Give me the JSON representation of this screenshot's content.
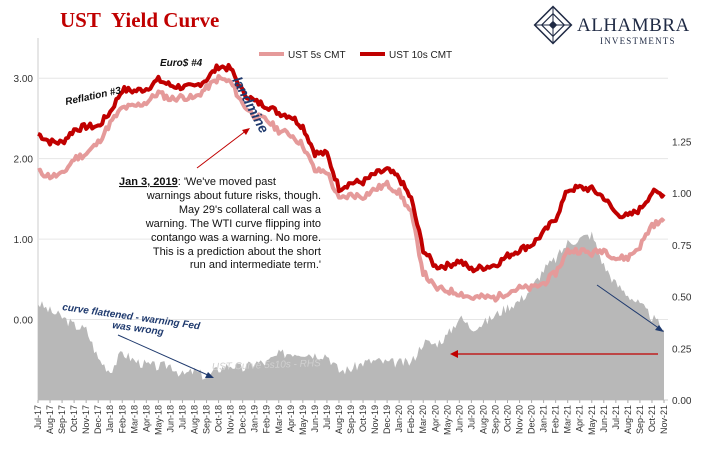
{
  "header": {
    "title_red": "UST",
    "title_dark": "Yield Curve"
  },
  "brand": {
    "name": "ALHAMBRA",
    "sub": "INVESTMENTS"
  },
  "legend": {
    "item_5s": "UST 5s CMT",
    "item_10s": "UST 10s CMT"
  },
  "annotations": {
    "reflation": "Reflation #3",
    "euro": "Euro$ #4",
    "landmine": "landmine",
    "quote_date": "Jan 3, 2019",
    "quote_lines": [
      ": 'We've moved past",
      "warnings about future risks, though.",
      "May 29's collateral call was a",
      "warning. The WTI curve flipping into",
      "contango was a warning. No more.",
      "This is a prediction about the short",
      "run and intermediate term.'"
    ],
    "curve_flat_1": "curve flattened - warning Fed",
    "curve_flat_2": "was wrong",
    "spread_label": "UST  Curve 5s10s - RHS"
  },
  "colors": {
    "ust10": "#c00000",
    "ust5": "#e59a9a",
    "spread": "#b8b8b8",
    "arrow_blue": "#1f3a6e",
    "arrow_red": "#c00000"
  },
  "chart_data": {
    "type": "line",
    "left_axis": {
      "ylim": [
        -1.0,
        3.5
      ],
      "ticks": [
        "3.00",
        "2.00",
        "1.00",
        "0.00"
      ],
      "tick_values": [
        3,
        2,
        1,
        0
      ]
    },
    "right_axis": {
      "ylim": [
        0.0,
        1.75
      ],
      "ticks": [
        "1.25",
        "1.00",
        "0.75",
        "0.50",
        "0.25",
        "0.00"
      ],
      "tick_values": [
        1.25,
        1.0,
        0.75,
        0.5,
        0.25,
        0.0
      ]
    },
    "x_labels": [
      "Jul-17",
      "Aug-17",
      "Sep-17",
      "Oct-17",
      "Nov-17",
      "Dec-17",
      "Jan-18",
      "Feb-18",
      "Mar-18",
      "Apr-18",
      "May-18",
      "Jun-18",
      "Jul-18",
      "Aug-18",
      "Sep-18",
      "Oct-18",
      "Nov-18",
      "Dec-18",
      "Jan-19",
      "Feb-19",
      "Mar-19",
      "Apr-19",
      "May-19",
      "Jun-19",
      "Jul-19",
      "Aug-19",
      "Sep-19",
      "Oct-19",
      "Nov-19",
      "Dec-19",
      "Jan-20",
      "Feb-20",
      "Mar-20",
      "Apr-20",
      "May-20",
      "Jun-20",
      "Jul-20",
      "Aug-20",
      "Sep-20",
      "Oct-20",
      "Nov-20",
      "Dec-20",
      "Jan-21",
      "Feb-21",
      "Mar-21",
      "Apr-21",
      "May-21",
      "Jun-21",
      "Jul-21",
      "Aug-21",
      "Sep-21",
      "Oct-21",
      "Nov-21"
    ],
    "series": [
      {
        "name": "UST 10s CMT",
        "axis": "left",
        "values": [
          2.31,
          2.21,
          2.2,
          2.36,
          2.4,
          2.4,
          2.58,
          2.86,
          2.84,
          2.87,
          2.98,
          2.91,
          2.89,
          2.89,
          2.99,
          3.15,
          3.12,
          2.83,
          2.71,
          2.66,
          2.57,
          2.53,
          2.4,
          2.07,
          2.06,
          1.63,
          1.7,
          1.71,
          1.81,
          1.86,
          1.76,
          1.5,
          0.87,
          0.66,
          0.67,
          0.73,
          0.62,
          0.65,
          0.68,
          0.79,
          0.87,
          0.93,
          1.08,
          1.26,
          1.61,
          1.64,
          1.62,
          1.52,
          1.32,
          1.28,
          1.37,
          1.58,
          1.56
        ]
      },
      {
        "name": "UST 5s CMT",
        "axis": "left",
        "values": [
          1.84,
          1.78,
          1.8,
          2.0,
          2.06,
          2.2,
          2.44,
          2.63,
          2.65,
          2.7,
          2.82,
          2.74,
          2.77,
          2.75,
          2.88,
          3.0,
          2.95,
          2.68,
          2.53,
          2.48,
          2.35,
          2.3,
          2.17,
          1.85,
          1.84,
          1.49,
          1.55,
          1.53,
          1.62,
          1.68,
          1.58,
          1.32,
          0.59,
          0.39,
          0.36,
          0.33,
          0.27,
          0.28,
          0.27,
          0.34,
          0.39,
          0.39,
          0.45,
          0.58,
          0.85,
          0.86,
          0.82,
          0.87,
          0.76,
          0.77,
          0.91,
          1.18,
          1.22
        ]
      },
      {
        "name": "UST Curve 5s10s - RHS",
        "axis": "right",
        "values": [
          0.47,
          0.43,
          0.4,
          0.36,
          0.34,
          0.2,
          0.14,
          0.23,
          0.19,
          0.17,
          0.16,
          0.17,
          0.12,
          0.14,
          0.11,
          0.15,
          0.17,
          0.15,
          0.18,
          0.18,
          0.22,
          0.23,
          0.23,
          0.22,
          0.22,
          0.14,
          0.15,
          0.18,
          0.19,
          0.18,
          0.18,
          0.18,
          0.28,
          0.27,
          0.31,
          0.4,
          0.35,
          0.37,
          0.41,
          0.45,
          0.48,
          0.54,
          0.63,
          0.68,
          0.76,
          0.78,
          0.8,
          0.65,
          0.56,
          0.51,
          0.46,
          0.4,
          0.34
        ]
      }
    ]
  }
}
